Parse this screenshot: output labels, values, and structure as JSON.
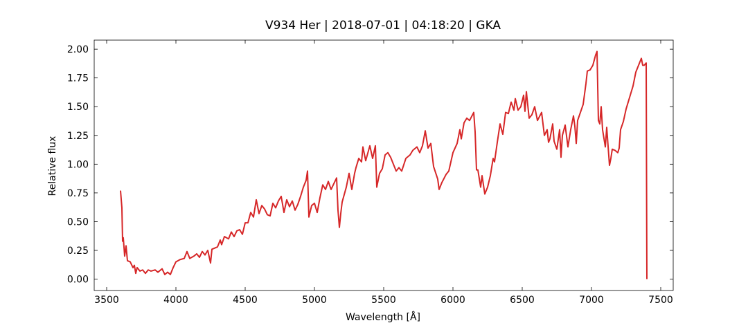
{
  "chart_data": {
    "type": "line",
    "title": "V934 Her | 2018-07-01 | 04:18:20 | GKA",
    "x_label": "Wavelength [Å]",
    "y_label": "Relative flux",
    "color": "#d62728",
    "xlim": [
      3410,
      7590
    ],
    "ylim": [
      -0.099,
      2.079
    ],
    "xticks": [
      3500,
      4000,
      4500,
      5000,
      5500,
      6000,
      6500,
      7000,
      7500
    ],
    "yticks": [
      {
        "value": 0,
        "label": "0.00"
      },
      {
        "value": 0.25,
        "label": "0.25"
      },
      {
        "value": 0.5,
        "label": "0.50"
      },
      {
        "value": 0.75,
        "label": "0.75"
      },
      {
        "value": 1,
        "label": "1.00"
      },
      {
        "value": 1.25,
        "label": "1.25"
      },
      {
        "value": 1.5,
        "label": "1.50"
      },
      {
        "value": 1.75,
        "label": "1.75"
      },
      {
        "value": 2,
        "label": "2.00"
      }
    ],
    "x": [
      3600,
      3610,
      3615,
      3620,
      3630,
      3640,
      3650,
      3670,
      3690,
      3700,
      3710,
      3720,
      3740,
      3760,
      3780,
      3800,
      3820,
      3850,
      3870,
      3900,
      3920,
      3940,
      3960,
      3980,
      4000,
      4030,
      4060,
      4080,
      4100,
      4130,
      4150,
      4170,
      4190,
      4210,
      4230,
      4250,
      4260,
      4280,
      4300,
      4320,
      4330,
      4350,
      4380,
      4400,
      4420,
      4440,
      4460,
      4480,
      4500,
      4520,
      4540,
      4560,
      4580,
      4600,
      4620,
      4640,
      4660,
      4680,
      4700,
      4720,
      4740,
      4760,
      4770,
      4780,
      4800,
      4820,
      4840,
      4860,
      4880,
      4900,
      4920,
      4940,
      4950,
      4960,
      4980,
      5000,
      5020,
      5040,
      5060,
      5080,
      5100,
      5120,
      5140,
      5160,
      5170,
      5180,
      5190,
      5200,
      5230,
      5250,
      5270,
      5290,
      5300,
      5320,
      5340,
      5350,
      5370,
      5400,
      5420,
      5440,
      5450,
      5470,
      5490,
      5510,
      5530,
      5550,
      5570,
      5590,
      5610,
      5630,
      5660,
      5690,
      5710,
      5740,
      5760,
      5780,
      5800,
      5820,
      5840,
      5860,
      5890,
      5900,
      5920,
      5950,
      5970,
      6000,
      6030,
      6050,
      6060,
      6080,
      6100,
      6120,
      6150,
      6160,
      6170,
      6180,
      6200,
      6210,
      6230,
      6250,
      6270,
      6290,
      6300,
      6320,
      6340,
      6360,
      6380,
      6400,
      6420,
      6440,
      6450,
      6470,
      6490,
      6510,
      6520,
      6530,
      6550,
      6570,
      6590,
      6610,
      6640,
      6660,
      6680,
      6690,
      6700,
      6720,
      6730,
      6750,
      6770,
      6780,
      6790,
      6810,
      6830,
      6850,
      6870,
      6880,
      6890,
      6900,
      6920,
      6940,
      6960,
      6970,
      6990,
      7010,
      7030,
      7040,
      7050,
      7060,
      7070,
      7080,
      7100,
      7110,
      7130,
      7140,
      7150,
      7170,
      7190,
      7200,
      7210,
      7230,
      7250,
      7280,
      7300,
      7320,
      7340,
      7360,
      7370,
      7380,
      7395,
      7400
    ],
    "values": [
      0.77,
      0.62,
      0.33,
      0.36,
      0.2,
      0.29,
      0.16,
      0.15,
      0.1,
      0.12,
      0.05,
      0.1,
      0.07,
      0.08,
      0.05,
      0.08,
      0.07,
      0.08,
      0.06,
      0.09,
      0.04,
      0.06,
      0.04,
      0.1,
      0.15,
      0.17,
      0.18,
      0.24,
      0.18,
      0.2,
      0.22,
      0.19,
      0.24,
      0.21,
      0.25,
      0.14,
      0.26,
      0.27,
      0.28,
      0.34,
      0.3,
      0.37,
      0.35,
      0.41,
      0.37,
      0.42,
      0.43,
      0.39,
      0.49,
      0.49,
      0.58,
      0.54,
      0.69,
      0.57,
      0.64,
      0.61,
      0.56,
      0.55,
      0.66,
      0.62,
      0.68,
      0.72,
      0.65,
      0.58,
      0.69,
      0.63,
      0.68,
      0.6,
      0.65,
      0.72,
      0.8,
      0.86,
      0.94,
      0.54,
      0.64,
      0.66,
      0.58,
      0.71,
      0.82,
      0.78,
      0.85,
      0.78,
      0.83,
      0.88,
      0.6,
      0.45,
      0.57,
      0.67,
      0.8,
      0.92,
      0.78,
      0.92,
      0.97,
      1.05,
      1.02,
      1.15,
      1.03,
      1.16,
      1.05,
      1.16,
      0.8,
      0.92,
      0.96,
      1.08,
      1.1,
      1.06,
      1.0,
      0.94,
      0.97,
      0.94,
      1.05,
      1.08,
      1.12,
      1.15,
      1.1,
      1.16,
      1.29,
      1.14,
      1.18,
      0.98,
      0.87,
      0.78,
      0.84,
      0.91,
      0.94,
      1.1,
      1.18,
      1.3,
      1.22,
      1.36,
      1.4,
      1.38,
      1.45,
      1.28,
      0.95,
      0.95,
      0.8,
      0.9,
      0.74,
      0.8,
      0.9,
      1.05,
      1.02,
      1.19,
      1.35,
      1.26,
      1.45,
      1.44,
      1.54,
      1.47,
      1.57,
      1.47,
      1.5,
      1.6,
      1.46,
      1.63,
      1.4,
      1.43,
      1.5,
      1.38,
      1.45,
      1.25,
      1.3,
      1.19,
      1.22,
      1.35,
      1.2,
      1.13,
      1.3,
      1.06,
      1.25,
      1.34,
      1.15,
      1.3,
      1.42,
      1.33,
      1.18,
      1.38,
      1.45,
      1.52,
      1.7,
      1.81,
      1.82,
      1.86,
      1.95,
      1.98,
      1.38,
      1.35,
      1.5,
      1.3,
      1.15,
      1.32,
      0.99,
      1.05,
      1.13,
      1.12,
      1.1,
      1.14,
      1.3,
      1.37,
      1.48,
      1.6,
      1.68,
      1.8,
      1.86,
      1.92,
      1.86,
      1.86,
      1.88,
      0.0
    ]
  }
}
